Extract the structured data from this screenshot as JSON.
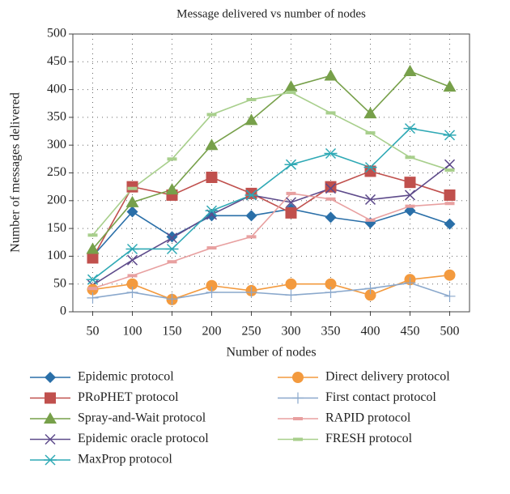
{
  "chart_data": {
    "type": "line",
    "title": "Message delivered vs number of nodes",
    "x_label": "Number of nodes",
    "y_label": "Number of messages delivered",
    "x": [
      50,
      100,
      150,
      200,
      250,
      300,
      350,
      400,
      450,
      500
    ],
    "xlim": [
      25,
      525
    ],
    "xticks": [
      50,
      100,
      150,
      200,
      250,
      300,
      350,
      400,
      450,
      500
    ],
    "ylim": [
      0,
      500
    ],
    "yticks": [
      0,
      50,
      100,
      150,
      200,
      250,
      300,
      350,
      400,
      450,
      500
    ],
    "grid": true,
    "series": [
      {
        "name": "Epidemic protocol",
        "color": "#2a6fa8",
        "marker": "diamond",
        "values": [
          100,
          180,
          135,
          173,
          173,
          185,
          170,
          160,
          182,
          158
        ]
      },
      {
        "name": "PRoPHET protocol",
        "color": "#c0504d",
        "marker": "square",
        "values": [
          97,
          225,
          210,
          242,
          213,
          178,
          225,
          253,
          233,
          210
        ]
      },
      {
        "name": "Spray-and-Wait protocol",
        "color": "#77a04a",
        "marker": "triangle",
        "values": [
          113,
          197,
          220,
          300,
          345,
          405,
          425,
          357,
          433,
          405
        ]
      },
      {
        "name": "Epidemic oracle protocol",
        "color": "#5e4b8b",
        "marker": "x",
        "values": [
          48,
          93,
          133,
          175,
          210,
          197,
          222,
          202,
          210,
          265
        ]
      },
      {
        "name": "MaxProp protocol",
        "color": "#2fa9b5",
        "marker": "star",
        "values": [
          58,
          113,
          113,
          182,
          210,
          265,
          285,
          260,
          330,
          318
        ]
      },
      {
        "name": "Direct delivery protocol",
        "color": "#f39a3e",
        "marker": "circle",
        "values": [
          40,
          50,
          22,
          47,
          38,
          50,
          50,
          30,
          58,
          66
        ]
      },
      {
        "name": "First contact protocol",
        "color": "#8aa8cc",
        "marker": "plus",
        "values": [
          25,
          35,
          23,
          35,
          35,
          30,
          35,
          42,
          52,
          28
        ]
      },
      {
        "name": "RAPID protocol",
        "color": "#e8a0a0",
        "marker": "dash",
        "values": [
          42,
          65,
          90,
          115,
          135,
          213,
          203,
          165,
          190,
          195
        ]
      },
      {
        "name": "FRESH protocol",
        "color": "#a8cf8c",
        "marker": "dash",
        "values": [
          138,
          222,
          275,
          355,
          382,
          395,
          358,
          322,
          278,
          255
        ]
      }
    ]
  }
}
